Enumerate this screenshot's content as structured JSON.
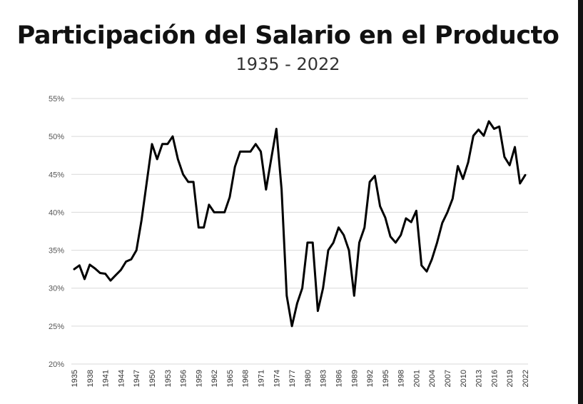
{
  "chart_data": {
    "type": "line",
    "title": "Participación del Salario en el Producto",
    "subtitle": "1935 - 2022",
    "xlabel": "",
    "ylabel": "",
    "ylim": [
      20,
      55
    ],
    "y_ticks": [
      20,
      25,
      30,
      35,
      40,
      45,
      50,
      55
    ],
    "y_tick_labels": [
      "20%",
      "25%",
      "30%",
      "35%",
      "40%",
      "45%",
      "50%",
      "55%"
    ],
    "x_tick_labels": [
      "1935",
      "1938",
      "1941",
      "1944",
      "1947",
      "1950",
      "1953",
      "1956",
      "1959",
      "1962",
      "1965",
      "1968",
      "1971",
      "1974",
      "1977",
      "1980",
      "1983",
      "1986",
      "1989",
      "1992",
      "1995",
      "1998",
      "2001",
      "2004",
      "2007",
      "2010",
      "2013",
      "2016",
      "2019",
      "2022"
    ],
    "grid": "horizontal",
    "line_color": "#000000",
    "series": [
      {
        "x": [
          1935,
          1936,
          1937,
          1938,
          1939,
          1940,
          1941,
          1942,
          1943,
          1944,
          1945,
          1946,
          1947,
          1948,
          1949,
          1950,
          1951,
          1952,
          1953,
          1954,
          1955,
          1956,
          1957,
          1958,
          1959,
          1960,
          1961,
          1962,
          1963,
          1964,
          1965,
          1966,
          1967,
          1968,
          1969,
          1970,
          1971,
          1972,
          1973,
          1974,
          1975,
          1976,
          1977,
          1978,
          1979,
          1980,
          1981,
          1982,
          1983,
          1984,
          1985,
          1986,
          1987,
          1988,
          1989,
          1990,
          1991,
          1992,
          1993,
          1994,
          1995,
          1996,
          1997,
          1998,
          1999,
          2000,
          2001,
          2002,
          2003,
          2004,
          2005,
          2006,
          2007,
          2008,
          2009,
          2010,
          2011,
          2012,
          2013,
          2014,
          2015,
          2016,
          2017,
          2018,
          2019,
          2020,
          2021,
          2022
        ],
        "values": [
          32.5,
          33,
          31.2,
          33.1,
          32.6,
          32,
          31.9,
          31,
          31.7,
          32.4,
          33.5,
          33.8,
          35,
          39,
          44,
          49,
          47,
          49,
          49,
          50,
          47,
          45,
          44,
          44,
          38,
          38,
          41,
          40,
          40,
          40,
          42,
          46,
          48,
          48,
          48,
          49,
          48,
          43,
          47,
          51,
          43,
          29,
          25,
          28,
          30,
          36,
          36,
          27,
          30,
          35,
          36,
          38,
          37,
          35,
          29,
          36,
          38,
          44,
          44.8,
          40.8,
          39.3,
          36.8,
          36,
          37,
          39.2,
          38.7,
          40.2,
          33,
          32.2,
          33.8,
          36,
          38.6,
          40,
          41.8,
          46.1,
          44.4,
          46.6,
          50.1,
          50.9,
          50.1,
          52,
          51,
          51.3,
          47.3,
          46.2,
          48.6,
          43.8,
          44.9
        ]
      }
    ]
  }
}
